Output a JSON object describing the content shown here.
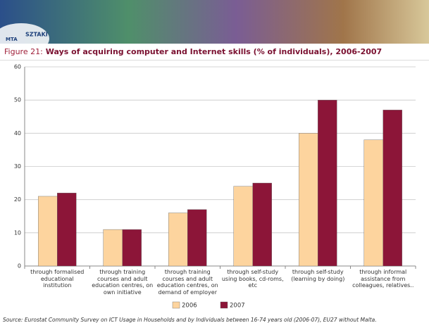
{
  "banner": {
    "org": "MTA",
    "institute": "SZTAKI"
  },
  "chart_data": {
    "type": "bar",
    "figure_label": "Figure 21:",
    "title": "Ways of acquiring computer and Internet skills (% of individuals), 2006-2007",
    "categories": [
      "through formalised educational institution",
      "through training courses and adult education centres, on own initiative",
      "through training courses and adult education centres, on demand of employer",
      "through self-study using books, cd-roms, etc",
      "through self-study (learning by doing)",
      "through informal assistance from colleagues, relatives.."
    ],
    "series": [
      {
        "name": "2006",
        "color": "#fdd49e",
        "values": [
          21,
          11,
          16,
          24,
          40,
          38
        ]
      },
      {
        "name": "2007",
        "color": "#8c1538",
        "values": [
          22,
          11,
          17,
          25,
          50,
          47
        ]
      }
    ],
    "ylim": [
      0,
      60
    ],
    "yticks": [
      0,
      10,
      20,
      30,
      40,
      50,
      60
    ],
    "grid": true,
    "source": "Source: Eurostat Community Survey on ICT Usage in Households and by Individuals between 16-74 years old (2006-07), EU27 without Malta."
  }
}
